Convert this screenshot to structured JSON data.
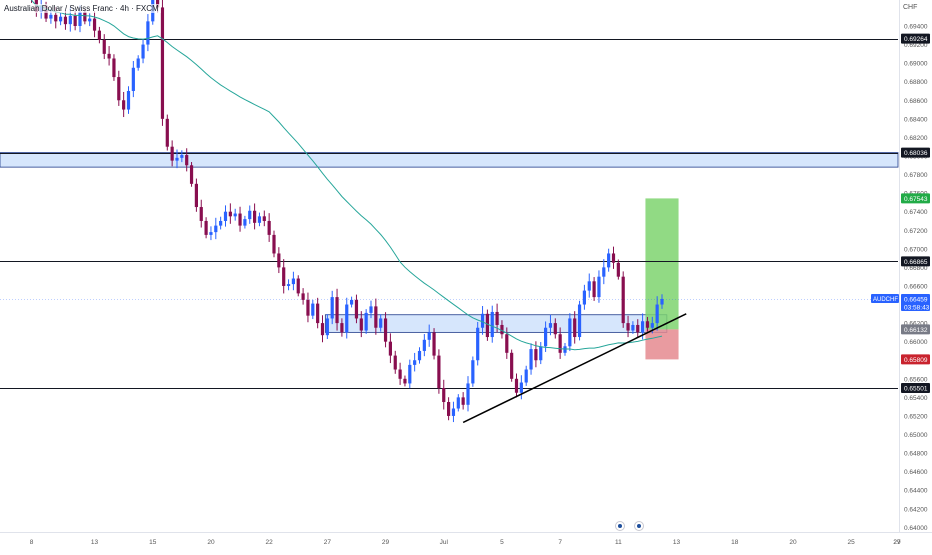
{
  "header": {
    "title": "Australian Dollar / Swiss Franc · 4h · FXCM",
    "currency": "CHF"
  },
  "chart_data": {
    "type": "candlestick",
    "symbol": "AUDCHF",
    "timeframe": "4h",
    "ylim": [
      0.6395,
      0.6968
    ],
    "y_ticks": [
      "0.69400",
      "0.69200",
      "0.69000",
      "0.68800",
      "0.68600",
      "0.68400",
      "0.68200",
      "0.68000",
      "0.67800",
      "0.67600",
      "0.67400",
      "0.67200",
      "0.67000",
      "0.66800",
      "0.66600",
      "0.66400",
      "0.66200",
      "0.66000",
      "0.65800",
      "0.65600",
      "0.65400",
      "0.65200",
      "0.65000",
      "0.64800",
      "0.64600",
      "0.64400",
      "0.64200",
      "0.64000"
    ],
    "x_ticks": [
      {
        "label": "8",
        "index": 0
      },
      {
        "label": "13",
        "index": 13
      },
      {
        "label": "15",
        "index": 25
      },
      {
        "label": "20",
        "index": 37
      },
      {
        "label": "22",
        "index": 49
      },
      {
        "label": "27",
        "index": 61
      },
      {
        "label": "29",
        "index": 73
      },
      {
        "label": "Jul",
        "index": 85
      },
      {
        "label": "5",
        "index": 97
      },
      {
        "label": "7",
        "index": 109
      },
      {
        "label": "11",
        "index": 121
      },
      {
        "label": "13",
        "index": 133
      },
      {
        "label": "18",
        "index": 145
      },
      {
        "label": "20",
        "index": 157
      },
      {
        "label": "25",
        "index": 169
      },
      {
        "label": "27",
        "index": 181
      },
      {
        "label": "29",
        "index": 193
      }
    ],
    "closes": [
      0.6968,
      0.6955,
      0.6962,
      0.6948,
      0.6952,
      0.6945,
      0.695,
      0.6942,
      0.6951,
      0.694,
      0.6955,
      0.6945,
      0.6948,
      0.6935,
      0.6925,
      0.691,
      0.6905,
      0.6885,
      0.686,
      0.685,
      0.687,
      0.6895,
      0.6905,
      0.692,
      0.6945,
      0.6968,
      0.696,
      0.684,
      0.681,
      0.6795,
      0.6798,
      0.6801,
      0.679,
      0.677,
      0.6745,
      0.673,
      0.6715,
      0.6718,
      0.6725,
      0.673,
      0.674,
      0.6735,
      0.6738,
      0.6725,
      0.6732,
      0.6741,
      0.6728,
      0.6735,
      0.673,
      0.6715,
      0.6695,
      0.668,
      0.666,
      0.6662,
      0.6668,
      0.6652,
      0.6645,
      0.6628,
      0.6641,
      0.662,
      0.6607,
      0.6625,
      0.6648,
      0.662,
      0.661,
      0.664,
      0.6645,
      0.6625,
      0.6612,
      0.6631,
      0.6638,
      0.6615,
      0.6625,
      0.66,
      0.6585,
      0.657,
      0.656,
      0.6555,
      0.6575,
      0.658,
      0.659,
      0.6602,
      0.661,
      0.6585,
      0.655,
      0.6535,
      0.652,
      0.6528,
      0.654,
      0.6532,
      0.6555,
      0.658,
      0.6615,
      0.663,
      0.6605,
      0.6632,
      0.6618,
      0.6608,
      0.6588,
      0.656,
      0.6545,
      0.6556,
      0.657,
      0.6592,
      0.658,
      0.6595,
      0.6615,
      0.662,
      0.6608,
      0.6588,
      0.6595,
      0.6625,
      0.6605,
      0.664,
      0.6655,
      0.6665,
      0.6648,
      0.667,
      0.668,
      0.6695,
      0.6685,
      0.667,
      0.662,
      0.6612,
      0.6618,
      0.661,
      0.6622,
      0.6615,
      0.662,
      0.664,
      0.6646
    ],
    "sma_period": 50,
    "horizontal_levels": [
      {
        "price": 0.69264,
        "label": "0.69264"
      },
      {
        "price": 0.68036,
        "label": "0.68036"
      },
      {
        "price": 0.66865,
        "label": "0.66865"
      },
      {
        "price": 0.65501,
        "label": "0.65501"
      }
    ],
    "zones": [
      {
        "top": 0.68036,
        "bottom": 0.6788,
        "from": "start",
        "to": "end"
      },
      {
        "top": 0.6629,
        "bottom": 0.661,
        "from_index": 61,
        "to_index": 131
      }
    ],
    "trendline": {
      "from": {
        "index": 89,
        "price": 0.6513
      },
      "to": {
        "index": 135,
        "price": 0.663
      }
    },
    "position": {
      "entry": 0.66132,
      "target": 0.67543,
      "stop": 0.65809,
      "from_index": 127,
      "to_index": 133
    },
    "price_labels": [
      {
        "text": "0.69264",
        "price": 0.69264,
        "bg": "#131722",
        "fg": "#ffffff"
      },
      {
        "text": "0.68036",
        "price": 0.68036,
        "bg": "#131722",
        "fg": "#ffffff"
      },
      {
        "text": "0.67543",
        "price": 0.67543,
        "bg": "#22ab47",
        "fg": "#ffffff"
      },
      {
        "text": "0.66865",
        "price": 0.66865,
        "bg": "#131722",
        "fg": "#ffffff"
      },
      {
        "text": "0.66132",
        "price": 0.66132,
        "bg": "#787b86",
        "fg": "#ffffff"
      },
      {
        "text": "0.65809",
        "price": 0.65809,
        "bg": "#c9232e",
        "fg": "#ffffff"
      },
      {
        "text": "0.65501",
        "price": 0.65501,
        "bg": "#131722",
        "fg": "#ffffff"
      }
    ],
    "last_price": {
      "symbol": "AUDCHF",
      "price": "0.66459",
      "countdown": "03:58:43",
      "value": 0.66459
    },
    "colors": {
      "up": "#2962ff",
      "down": "#880e4f",
      "ma": "#26a69a",
      "zone": "#cfe2fb",
      "zone_border": "#1e3a8a",
      "target": "#7ed36f",
      "stop": "#e5898f",
      "trendline": "#000000",
      "level": "#131722",
      "last_price": "#2962ff"
    }
  }
}
